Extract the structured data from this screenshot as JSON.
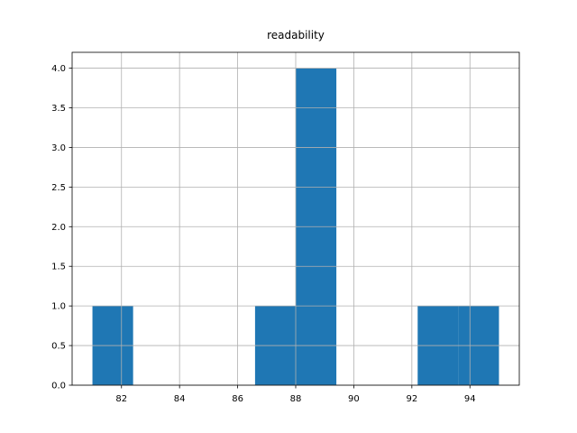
{
  "chart_data": {
    "type": "histogram",
    "title": "readability",
    "bins": [
      81.0,
      82.4,
      83.8,
      85.2,
      86.6,
      88.0,
      89.4,
      90.8,
      92.2,
      93.6,
      95.0
    ],
    "counts": [
      1,
      0,
      0,
      0,
      1,
      4,
      0,
      0,
      1,
      1
    ],
    "color": "#1f77b4",
    "xlim": [
      80.3,
      95.7
    ],
    "xticks": [
      82,
      84,
      86,
      88,
      90,
      92,
      94
    ],
    "ylim": [
      0,
      4.2
    ],
    "yticks": [
      {
        "value": 0,
        "label": "0.0"
      },
      0.5,
      {
        "value": 1,
        "label": "1.0"
      },
      1.5,
      {
        "value": 2,
        "label": "2.0"
      },
      2.5,
      {
        "value": 3,
        "label": "3.0"
      },
      3.5,
      {
        "value": 4,
        "label": "4.0"
      }
    ],
    "grid": true
  }
}
